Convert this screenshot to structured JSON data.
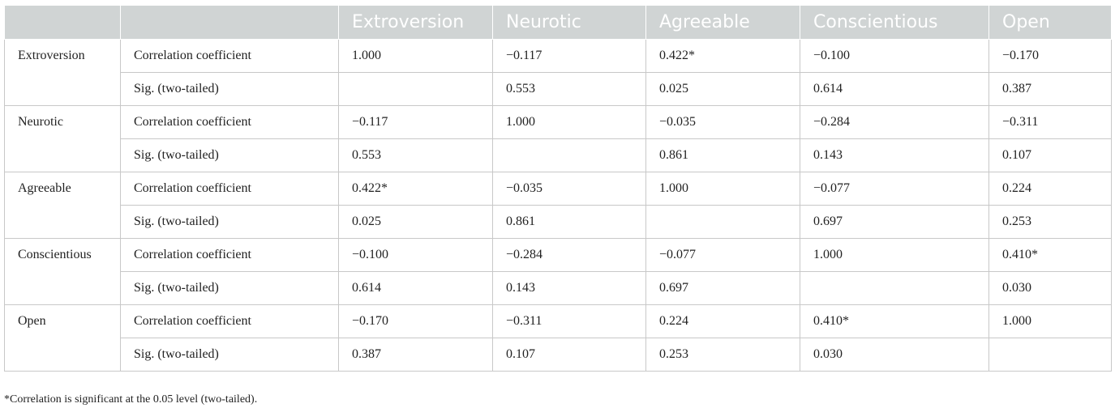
{
  "table": {
    "headers": [
      "",
      "",
      "Extroversion",
      "Neurotic",
      "Agreeable",
      "Conscientious",
      "Open"
    ],
    "groups": [
      {
        "variable": "Extroversion",
        "rows": [
          {
            "label": "Correlation coefficient",
            "values": [
              "1.000",
              "−0.117",
              "0.422*",
              "−0.100",
              "−0.170"
            ]
          },
          {
            "label": "Sig. (two-tailed)",
            "values": [
              "",
              "0.553",
              "0.025",
              "0.614",
              "0.387"
            ]
          }
        ]
      },
      {
        "variable": "Neurotic",
        "rows": [
          {
            "label": "Correlation coefficient",
            "values": [
              "−0.117",
              "1.000",
              "−0.035",
              "−0.284",
              "−0.311"
            ]
          },
          {
            "label": "Sig. (two-tailed)",
            "values": [
              "0.553",
              "",
              "0.861",
              "0.143",
              "0.107"
            ]
          }
        ]
      },
      {
        "variable": "Agreeable",
        "rows": [
          {
            "label": "Correlation coefficient",
            "values": [
              "0.422*",
              "−0.035",
              "1.000",
              "−0.077",
              "0.224"
            ]
          },
          {
            "label": "Sig. (two-tailed)",
            "values": [
              "0.025",
              "0.861",
              "",
              "0.697",
              "0.253"
            ]
          }
        ]
      },
      {
        "variable": "Conscientious",
        "rows": [
          {
            "label": "Correlation coefficient",
            "values": [
              "−0.100",
              "−0.284",
              "−0.077",
              "1.000",
              "0.410*"
            ]
          },
          {
            "label": "Sig. (two-tailed)",
            "values": [
              "0.614",
              "0.143",
              "0.697",
              "",
              "0.030"
            ]
          }
        ]
      },
      {
        "variable": "Open",
        "rows": [
          {
            "label": "Correlation coefficient",
            "values": [
              "−0.170",
              "−0.311",
              "0.224",
              "0.410*",
              "1.000"
            ]
          },
          {
            "label": "Sig. (two-tailed)",
            "values": [
              "0.387",
              "0.107",
              "0.253",
              "0.030",
              ""
            ]
          }
        ]
      }
    ]
  },
  "footnote": "*Correlation is significant at the 0.05 level (two-tailed).",
  "colors": {
    "header_bg": "#d0d4d4",
    "header_text": "#ffffff",
    "grid": "#c8c8c8"
  }
}
